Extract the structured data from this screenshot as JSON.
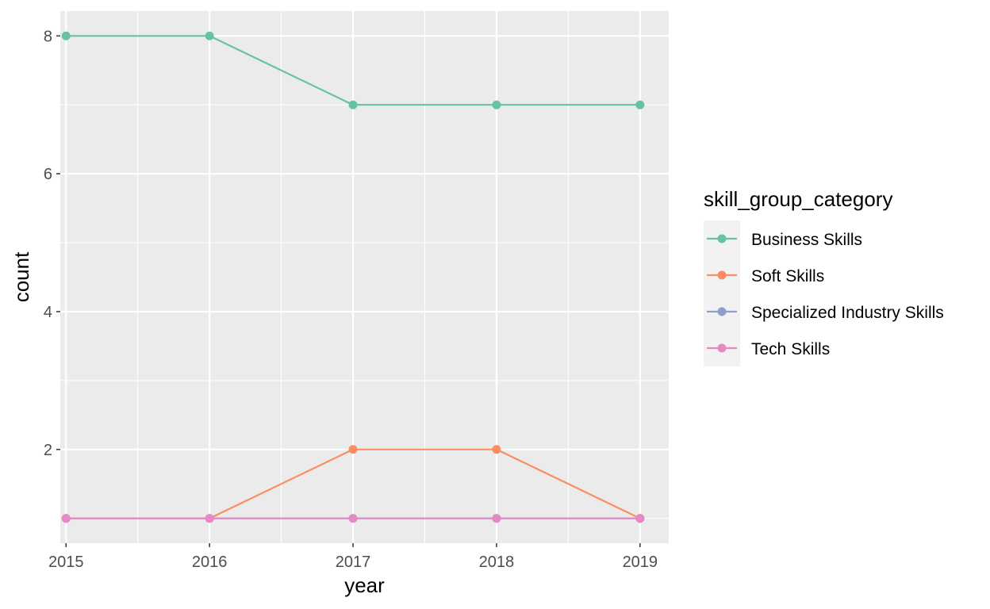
{
  "chart_data": {
    "type": "line",
    "xlabel": "year",
    "ylabel": "count",
    "x": [
      2015,
      2016,
      2017,
      2018,
      2019
    ],
    "xlim": [
      2014.96,
      2019.2
    ],
    "ylim": [
      0.64,
      8.36
    ],
    "y_ticks": [
      2,
      4,
      6,
      8
    ],
    "grid": true,
    "legend": {
      "title": "skill_group_category",
      "placement": "right"
    },
    "series": [
      {
        "name": "Business Skills",
        "color": "#66c2a5",
        "values": [
          8,
          8,
          7,
          7,
          7
        ]
      },
      {
        "name": "Soft Skills",
        "color": "#fc8d62",
        "values": [
          1,
          1,
          2,
          2,
          1
        ]
      },
      {
        "name": "Specialized Industry Skills",
        "color": "#8da0cb",
        "values": [
          1,
          1,
          1,
          1,
          1
        ]
      },
      {
        "name": "Tech Skills",
        "color": "#e78ac3",
        "values": [
          1,
          1,
          1,
          1,
          1
        ]
      }
    ]
  }
}
